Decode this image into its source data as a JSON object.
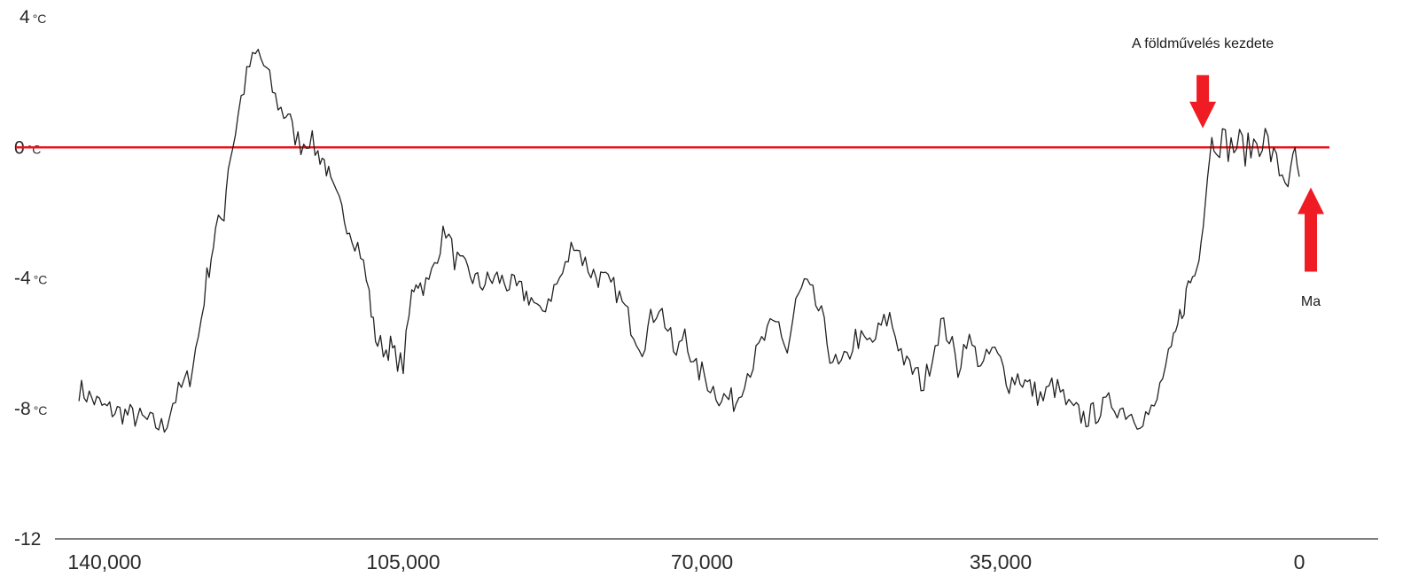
{
  "chart_data": {
    "type": "line",
    "title": "",
    "xlabel": "",
    "ylabel": "",
    "x_reversed": true,
    "xlim": [
      143000,
      -1000
    ],
    "ylim": [
      -12,
      4
    ],
    "x_ticks": [
      {
        "value": 140000,
        "label": "140,000"
      },
      {
        "value": 105000,
        "label": "105,000"
      },
      {
        "value": 70000,
        "label": "70,000"
      },
      {
        "value": 35000,
        "label": "35,000"
      },
      {
        "value": 0,
        "label": "0"
      }
    ],
    "y_ticks": [
      {
        "value": 4,
        "label": "4",
        "unit": "°C"
      },
      {
        "value": 0,
        "label": "0",
        "unit": "°C"
      },
      {
        "value": -4,
        "label": "-4",
        "unit": "°C"
      },
      {
        "value": -8,
        "label": "-8",
        "unit": "°C"
      },
      {
        "value": -12,
        "label": "-12",
        "unit": ""
      }
    ],
    "reference_line": {
      "y": 0,
      "color": "#e8161b"
    },
    "series": [
      {
        "color": "#222222",
        "x": [
          143000,
          140000,
          137000,
          135000,
          134000,
          133000,
          132000,
          131000,
          130000,
          129000,
          128000,
          127500,
          127000,
          126000,
          125500,
          125000,
          124000,
          123000,
          122000,
          121000,
          120000,
          119000,
          118500,
          118000,
          117000,
          116000,
          115000,
          114500,
          114000,
          113500,
          112500,
          111000,
          110000,
          109000,
          108500,
          108000,
          107000,
          106500,
          106000,
          105000,
          104000,
          103500,
          103000,
          102000,
          101000,
          100000,
          99000,
          98000,
          96000,
          94000,
          92000,
          90000,
          89000,
          88000,
          87000,
          86000,
          85000,
          84000,
          83000,
          81000,
          80000,
          79000,
          78000,
          77000,
          76000,
          75000,
          74000,
          73000,
          72000,
          71000,
          70000,
          69000,
          68000,
          66000,
          65000,
          64000,
          63000,
          62000,
          61000,
          60000,
          59000,
          58000,
          57000,
          56000,
          55000,
          54000,
          53000,
          52000,
          51000,
          50000,
          49000,
          48000,
          47000,
          46000,
          45000,
          44000,
          43000,
          42000,
          41000,
          40000,
          39000,
          38000,
          37000,
          36000,
          35000,
          34000,
          33000,
          31000,
          30000,
          29000,
          28000,
          27000,
          25000,
          23000,
          22000,
          21000,
          20000,
          19000,
          18000,
          17000,
          16000,
          15000,
          14500,
          14000,
          13500,
          13000,
          12500,
          12000,
          11500,
          11000,
          10500,
          10000,
          9000,
          8000,
          7000,
          6000,
          5000,
          4000,
          3000,
          2000,
          1000,
          500,
          0
        ],
        "y": [
          -7.4,
          -8.0,
          -8.2,
          -8.4,
          -8.5,
          -8.6,
          -7.8,
          -7.4,
          -7.0,
          -5.8,
          -4.0,
          -3.3,
          -2.6,
          -2.0,
          -0.5,
          0.0,
          1.5,
          2.5,
          2.9,
          2.3,
          1.5,
          1.0,
          1.1,
          0.5,
          0.1,
          0.3,
          -0.2,
          -0.3,
          -0.6,
          -1.2,
          -1.8,
          -2.6,
          -3.2,
          -4.5,
          -5.5,
          -6.0,
          -6.2,
          -6.1,
          -6.4,
          -6.7,
          -4.5,
          -4.0,
          -4.2,
          -4.2,
          -3.2,
          -2.5,
          -3.4,
          -3.7,
          -4.2,
          -4.0,
          -4.3,
          -4.6,
          -5.2,
          -4.6,
          -4.2,
          -3.7,
          -2.8,
          -3.4,
          -3.8,
          -4.2,
          -4.4,
          -5.0,
          -5.6,
          -6.1,
          -5.3,
          -4.8,
          -5.6,
          -6.5,
          -5.5,
          -6.8,
          -6.9,
          -7.3,
          -7.6,
          -7.8,
          -7.0,
          -6.6,
          -6.0,
          -5.6,
          -5.4,
          -6.3,
          -4.8,
          -4.2,
          -4.6,
          -5.2,
          -6.3,
          -6.8,
          -6.5,
          -5.8,
          -6.0,
          -6.0,
          -5.5,
          -5.2,
          -6.0,
          -6.7,
          -6.9,
          -7.3,
          -6.3,
          -5.4,
          -5.8,
          -6.8,
          -5.8,
          -6.3,
          -6.7,
          -6.2,
          -6.6,
          -7.2,
          -7.0,
          -7.5,
          -7.7,
          -7.3,
          -7.5,
          -8.0,
          -8.3,
          -8.0,
          -7.8,
          -8.0,
          -8.1,
          -8.3,
          -8.2,
          -8.1,
          -7.0,
          -6.3,
          -5.8,
          -5.2,
          -4.8,
          -4.2,
          -4.0,
          -3.7,
          -2.4,
          -1.5,
          0.0,
          0.3,
          0.2,
          0.0,
          0.1,
          -0.1,
          0.2,
          0.3,
          -0.4,
          -0.8,
          -1.0,
          -0.2,
          -0.9
        ]
      }
    ],
    "annotations": [
      {
        "text": "A földművelés kezdete",
        "x": 11000,
        "y": 0.8,
        "arrow": "down",
        "color": "#ef1c24"
      },
      {
        "text": "Ma",
        "x": 0,
        "y": -1.5,
        "arrow": "up",
        "color": "#ef1c24"
      }
    ]
  }
}
